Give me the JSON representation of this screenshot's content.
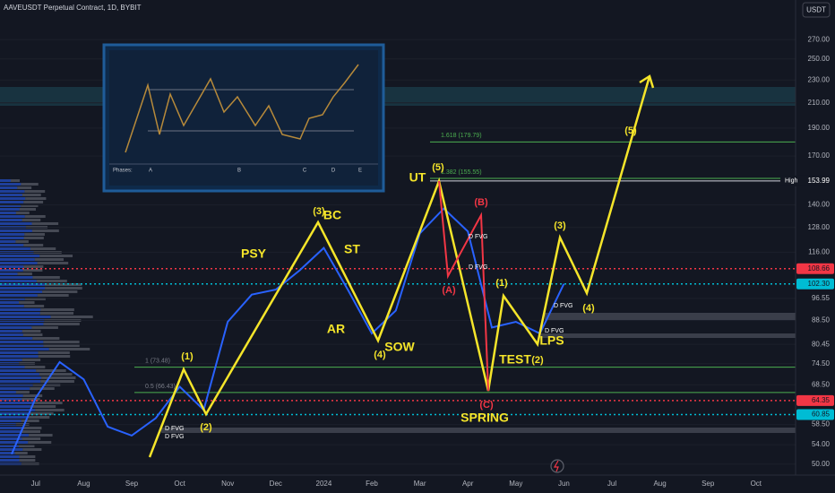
{
  "chart_data": {
    "type": "line",
    "title": "AAVEUSDT Perpetual Contract, 1D, BYBIT",
    "currency": "USDT",
    "log_scale": true,
    "grid": true,
    "color": "#2962ff",
    "categories": [
      null,
      "Jul",
      null,
      "Aug",
      null,
      "Sep",
      null,
      "Oct",
      null,
      "Nov",
      null,
      "Dec",
      null,
      "2024",
      null,
      "Feb",
      null,
      "Mar",
      null,
      "Apr",
      null,
      "May",
      null,
      "Jun",
      null,
      "Jul",
      null,
      "Aug",
      null,
      "Sep",
      null,
      "Oct"
    ],
    "values": [
      52,
      65,
      75,
      70,
      58,
      56,
      60,
      68,
      62,
      88,
      98,
      100,
      108,
      118,
      100,
      84,
      92,
      125,
      138,
      126,
      86,
      88,
      84,
      102.3,
      null,
      null,
      null,
      null,
      null,
      null,
      null,
      null
    ],
    "ylim": [
      48.2,
      316
    ],
    "yticks": [
      {
        "value": 270,
        "label": "270.00"
      },
      {
        "value": 250,
        "label": "250.00"
      },
      {
        "value": 230,
        "label": "230.00"
      },
      {
        "value": 210,
        "label": "210.00"
      },
      {
        "value": 190,
        "label": "190.00"
      },
      {
        "value": 170,
        "label": "170.00"
      },
      {
        "value": 140,
        "label": "140.00"
      },
      {
        "value": 128,
        "label": "128.00"
      },
      {
        "value": 116,
        "label": "116.00"
      },
      96.55,
      {
        "value": 88.5,
        "label": "88.50"
      },
      80.45,
      {
        "value": 74.5,
        "label": "74.50"
      },
      {
        "value": 68.5,
        "label": "68.50"
      },
      {
        "value": 58.5,
        "label": "58.50"
      },
      {
        "value": 54,
        "label": "54.00"
      },
      {
        "value": 50,
        "label": "50.00"
      }
    ],
    "price_lines": [
      {
        "value": 153.99,
        "label": "153.99",
        "name": "High",
        "color": "#d1d4dc"
      },
      {
        "value": 108.66,
        "label": "108.66",
        "color": "#f23645"
      },
      {
        "value": 102.3,
        "label": "102.30",
        "color": "#00bcd4"
      },
      {
        "value": 64.35,
        "label": "64.35",
        "color": "#f23645"
      },
      {
        "value": 60.85,
        "label": "60.85",
        "color": "#00bcd4"
      }
    ],
    "fib_levels": [
      {
        "value": 179.79,
        "label": "1.618 (179.79)",
        "color": "#4caf50"
      },
      {
        "value": 155.55,
        "label": "1.382 (155.55)",
        "color": "#4caf50"
      },
      {
        "value": 73.48,
        "label": "1 (73.48)",
        "color": "#4caf50"
      },
      {
        "value": 66.43,
        "label": "0.5 (66.43)",
        "color": "#4caf50"
      }
    ],
    "annotations": [
      {
        "text": "(1)",
        "color": "#f5e52a"
      },
      {
        "text": "(2)",
        "color": "#f5e52a"
      },
      {
        "text": "(3)",
        "color": "#f5e52a"
      },
      {
        "text": "BC",
        "color": "#f5e52a"
      },
      {
        "text": "PSY",
        "color": "#f5e52a"
      },
      {
        "text": "ST",
        "color": "#f5e52a"
      },
      {
        "text": "AR",
        "color": "#f5e52a"
      },
      {
        "text": "(4)",
        "color": "#f5e52a"
      },
      {
        "text": "SOW",
        "color": "#f5e52a"
      },
      {
        "text": "UT",
        "color": "#f5e52a"
      },
      {
        "text": "(5)",
        "color": "#f5e52a"
      },
      {
        "text": "(B)",
        "color": "#f23645"
      },
      {
        "text": "(A)",
        "color": "#f23645"
      },
      {
        "text": "(1)",
        "color": "#f5e52a"
      },
      {
        "text": "TEST",
        "color": "#f5e52a"
      },
      {
        "text": "(2)",
        "color": "#f5e52a"
      },
      {
        "text": "LPS",
        "color": "#f5e52a"
      },
      {
        "text": "(C)",
        "color": "#f23645"
      },
      {
        "text": "SPRING",
        "color": "#f5e52a"
      },
      {
        "text": "(3)",
        "color": "#f5e52a"
      },
      {
        "text": "(4)",
        "color": "#f5e52a"
      },
      {
        "text": "(5)",
        "color": "#f5e52a"
      },
      {
        "text": "D FVG",
        "color": "#ffffff"
      },
      {
        "text": "D FVG",
        "color": "#ffffff"
      },
      {
        "text": "D FVG",
        "color": "#ffffff"
      },
      {
        "text": "D FVG",
        "color": "#ffffff"
      },
      {
        "text": "D FVG",
        "color": "#ffffff"
      },
      {
        "text": "D FVG",
        "color": "#ffffff"
      }
    ],
    "inset": {
      "phases_label": "Phases:",
      "phases": [
        "A",
        "B",
        "C",
        "D",
        "E"
      ]
    }
  }
}
